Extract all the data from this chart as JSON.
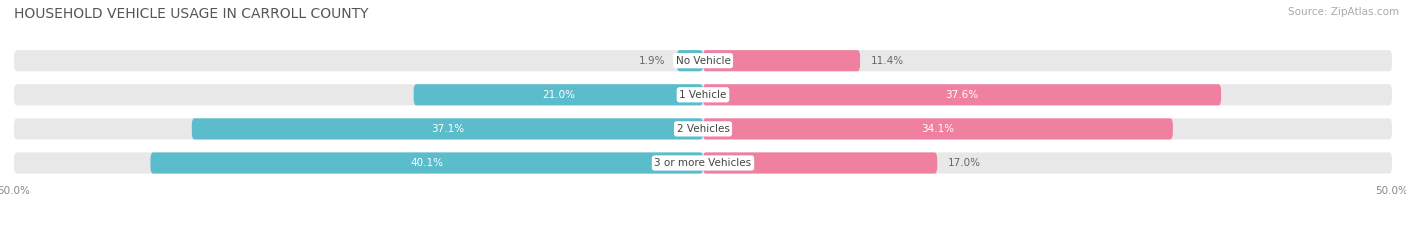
{
  "title": "HOUSEHOLD VEHICLE USAGE IN CARROLL COUNTY",
  "source": "Source: ZipAtlas.com",
  "categories": [
    "No Vehicle",
    "1 Vehicle",
    "2 Vehicles",
    "3 or more Vehicles"
  ],
  "owner_values": [
    1.9,
    21.0,
    37.1,
    40.1
  ],
  "renter_values": [
    11.4,
    37.6,
    34.1,
    17.0
  ],
  "owner_color": "#5bbccc",
  "renter_color": "#f080a0",
  "bg_color": "#e8e8e8",
  "background_color": "#ffffff",
  "title_fontsize": 10,
  "source_fontsize": 7.5,
  "label_fontsize": 7.5,
  "tick_fontsize": 7.5,
  "category_fontsize": 7.5,
  "value_fontsize": 7.5
}
